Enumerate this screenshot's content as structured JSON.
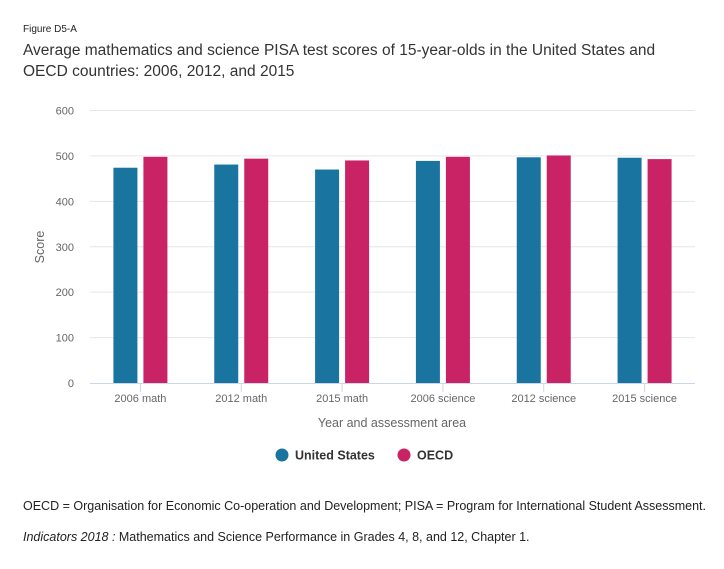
{
  "figure_label": "Figure D5-A",
  "title": "Average mathematics and science PISA test scores of 15-year-olds in the United States and OECD countries: 2006, 2012, and 2015",
  "footnote": "OECD = Organisation for Economic Co-operation and Development; PISA = Program for International Student Assessment.",
  "source": {
    "italic": "Indicators 2018 :",
    "text": " Mathematics and Science Performance in Grades 4, 8, and 12, Chapter 1."
  },
  "chart_data": {
    "type": "bar",
    "title": "Average mathematics and science PISA test scores of 15-year-olds in the United States and OECD countries: 2006, 2012, and 2015",
    "xlabel": "Year and assessment area",
    "ylabel": "Score",
    "ylim": [
      0,
      600
    ],
    "yticks": [
      0,
      100,
      200,
      300,
      400,
      500,
      600
    ],
    "grid": true,
    "legend_position": "bottom-center",
    "categories": [
      "2006 math",
      "2012 math",
      "2015 math",
      "2006 science",
      "2012 science",
      "2015 science"
    ],
    "series": [
      {
        "name": "United States",
        "color": "#1a74a0",
        "values": [
          474,
          481,
          470,
          489,
          497,
          496
        ]
      },
      {
        "name": "OECD",
        "color": "#c92365",
        "values": [
          498,
          494,
          490,
          498,
          501,
          493
        ]
      }
    ]
  }
}
